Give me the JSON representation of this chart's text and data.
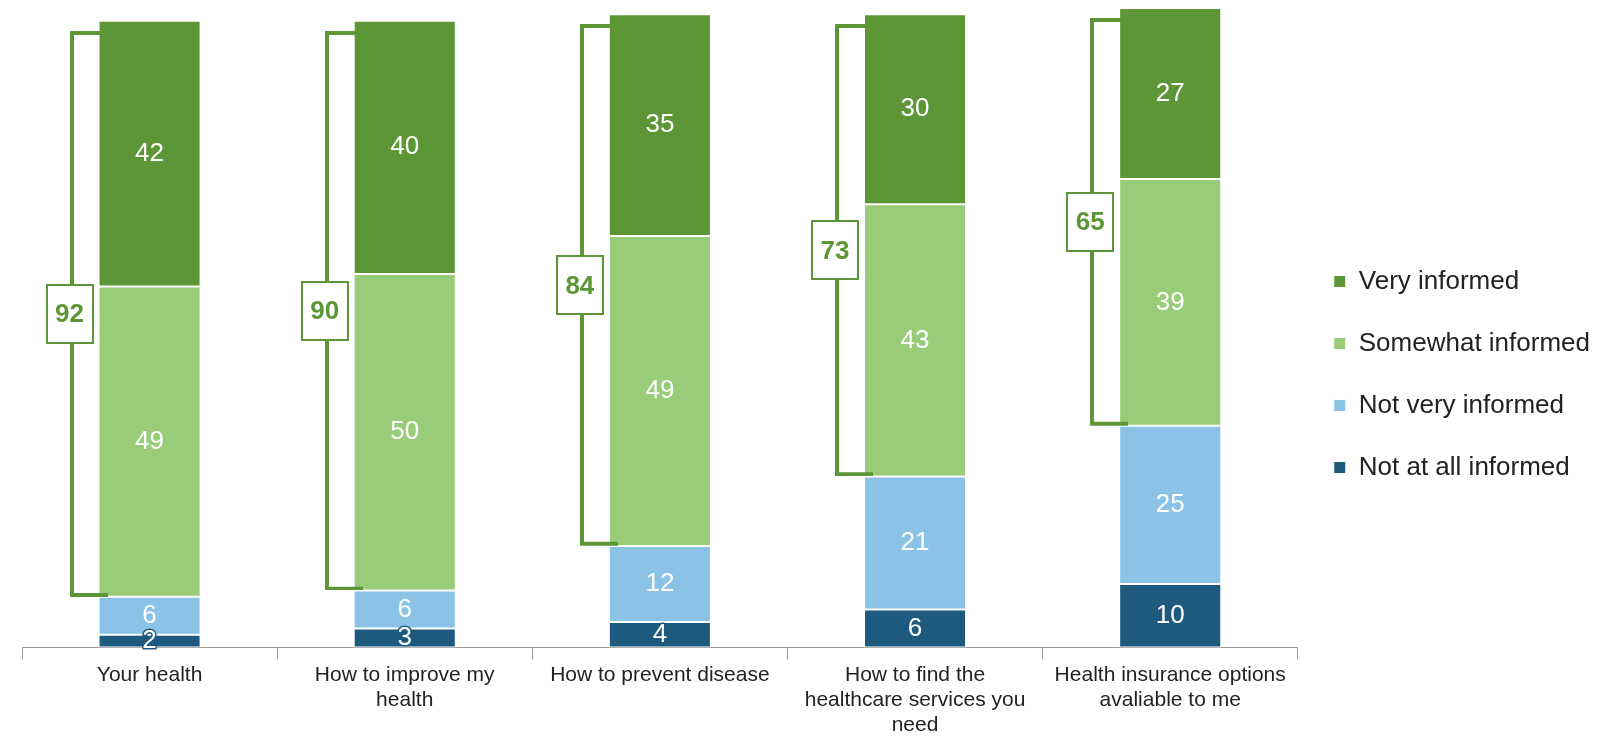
{
  "chart_data": {
    "type": "bar",
    "stacked": true,
    "data_labels": true,
    "legend": "right",
    "categories": [
      "Your health",
      "How to improve my health",
      "How to prevent disease",
      "How to find the healthcare services you need",
      "Health insurance options avaliable to me"
    ],
    "series": [
      {
        "name": "Not at all informed",
        "color": "#1d5a7e",
        "values": [
          2,
          3,
          4,
          6,
          10
        ]
      },
      {
        "name": "Not very informed",
        "color": "#8bc3e6",
        "values": [
          6,
          6,
          12,
          21,
          25
        ]
      },
      {
        "name": "Somewhat informed",
        "color": "#98cc78",
        "values": [
          49,
          50,
          49,
          43,
          39
        ]
      },
      {
        "name": "Very informed",
        "color": "#5c9636",
        "values": [
          42,
          40,
          35,
          30,
          27
        ]
      }
    ],
    "annotations": [
      "92",
      "90",
      "84",
      "73",
      "65"
    ]
  }
}
